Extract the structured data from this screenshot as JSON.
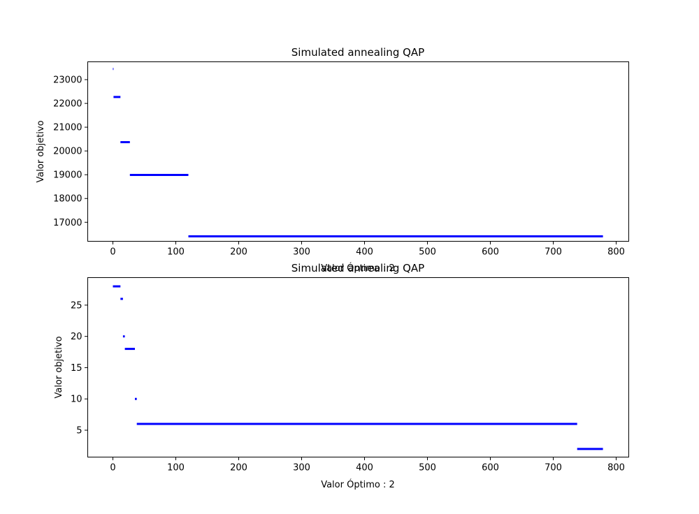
{
  "chart_data": [
    {
      "type": "scatter",
      "title": "Simulated annealing QAP",
      "xlabel": "Valor Óptimo : 2",
      "ylabel": "Valor objetivo",
      "xlim": [
        -40,
        820
      ],
      "ylim": [
        16200,
        23750
      ],
      "xticks": [
        0,
        100,
        200,
        300,
        400,
        500,
        600,
        700,
        800
      ],
      "yticks": [
        17000,
        18000,
        19000,
        20000,
        21000,
        22000,
        23000
      ],
      "grid": false,
      "color": "#0000ff",
      "segments": [
        {
          "x_start": 0,
          "x_end": 1,
          "y": 23450
        },
        {
          "x_start": 1,
          "x_end": 12,
          "y": 22270
        },
        {
          "x_start": 12,
          "x_end": 27,
          "y": 20370
        },
        {
          "x_start": 27,
          "x_end": 120,
          "y": 18990
        },
        {
          "x_start": 120,
          "x_end": 779,
          "y": 16410
        }
      ]
    },
    {
      "type": "scatter",
      "title": "Simulated annealing QAP",
      "xlabel": "Valor Óptimo : 2",
      "ylabel": "Valor objetivo",
      "xlim": [
        -40,
        820
      ],
      "ylim": [
        0.7,
        29.4
      ],
      "xticks": [
        0,
        100,
        200,
        300,
        400,
        500,
        600,
        700,
        800
      ],
      "yticks": [
        5,
        10,
        15,
        20,
        25
      ],
      "grid": false,
      "color": "#0000ff",
      "segments": [
        {
          "x_start": 0,
          "x_end": 12,
          "y": 28
        },
        {
          "x_start": 12,
          "x_end": 16,
          "y": 26
        },
        {
          "x_start": 16,
          "x_end": 19,
          "y": 20
        },
        {
          "x_start": 19,
          "x_end": 35,
          "y": 18
        },
        {
          "x_start": 35,
          "x_end": 38,
          "y": 10
        },
        {
          "x_start": 38,
          "x_end": 738,
          "y": 6
        },
        {
          "x_start": 738,
          "x_end": 779,
          "y": 2
        }
      ]
    }
  ]
}
